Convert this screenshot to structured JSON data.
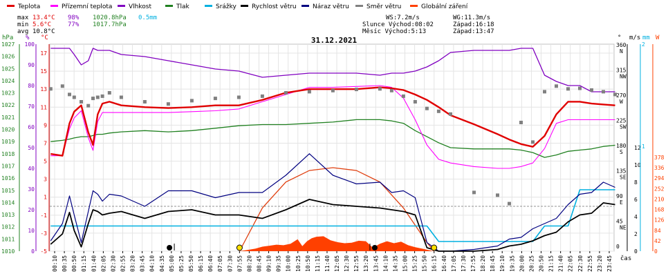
{
  "legend": [
    {
      "label": "Teplota",
      "color": "#e00000"
    },
    {
      "label": "Přízemní teplota",
      "color": "#ff00ff"
    },
    {
      "label": "Vlhkost",
      "color": "#8000c0"
    },
    {
      "label": "Tlak",
      "color": "#208020"
    },
    {
      "label": "Srážky",
      "color": "#00b0e0"
    },
    {
      "label": "Rychlost větru",
      "color": "#000000"
    },
    {
      "label": "Náraz větru",
      "color": "#000080"
    },
    {
      "label": "Směr větru",
      "color": "#808080"
    },
    {
      "label": "Globální záření",
      "color": "#ff4000"
    }
  ],
  "stats": {
    "max_label": "max",
    "max_temp": "13.4°C",
    "max_hum": "98%",
    "max_press": "1020.8hPa",
    "max_rain": "0.5mm",
    "min_label": "min",
    "min_temp": "5.6°C",
    "min_hum": "77%",
    "min_press": "1017.7hPa",
    "avg_label": "avg",
    "avg_temp": "10.8°C"
  },
  "info": {
    "ws": "WS:7.2m/s",
    "wg": "WG:11.3m/s",
    "slunce": "Slunce Východ:08:02",
    "slunce_zapad": "Západ:16:18",
    "mesic": "Měsíc  Východ:5:13",
    "mesic_zapad": "Západ:13:47"
  },
  "date_title": "31.12.2021",
  "axis_titles": {
    "hpa": "hPa",
    "pct": "%",
    "degc": "°C",
    "ms": "m/s",
    "mm": "mm",
    "w": "W",
    "deg": "°",
    "time": "čas"
  },
  "colors": {
    "temp": "#e00000",
    "ground": "#ff00ff",
    "hum": "#8000c0",
    "press": "#208020",
    "rain": "#00b0e0",
    "wind": "#000000",
    "gust": "#000080",
    "dir": "#808080",
    "rad": "#ff4000"
  },
  "chart_data": {
    "type": "line",
    "x_ticks": [
      "00:10",
      "00:35",
      "00:50",
      "01:15",
      "01:40",
      "02:05",
      "02:30",
      "02:55",
      "03:20",
      "03:45",
      "04:10",
      "04:35",
      "05:00",
      "05:25",
      "05:50",
      "06:15",
      "06:40",
      "07:05",
      "07:30",
      "07:55",
      "08:20",
      "08:45",
      "09:10",
      "09:35",
      "10:00",
      "10:25",
      "10:50",
      "11:15",
      "11:40",
      "12:05",
      "12:30",
      "12:55",
      "13:20",
      "13:45",
      "14:10",
      "14:35",
      "15:00",
      "15:25",
      "15:50",
      "16:15",
      "16:40",
      "17:05",
      "17:30",
      "17:55",
      "18:20",
      "18:45",
      "19:10",
      "19:35",
      "20:00",
      "20:25",
      "20:50",
      "21:15",
      "21:40",
      "22:05",
      "22:30",
      "22:55",
      "23:20",
      "23:45"
    ],
    "y_axes": {
      "pressure_hpa": [
        "1027",
        "1026",
        "1025",
        "1024",
        "1023",
        "1022",
        "1021",
        "1020",
        "1019",
        "1018",
        "1017",
        "1016",
        "1015",
        "1014",
        "1013",
        "1012",
        "1011",
        "1010"
      ],
      "humidity_pct": [
        "100",
        "90",
        "80",
        "70",
        "60",
        "50",
        "40",
        "30",
        "20",
        "10",
        "0"
      ],
      "temperature_c": [
        "17",
        "15",
        "13",
        "11",
        "9",
        "7",
        "5",
        "3",
        "1",
        "-1",
        "-3",
        "-5"
      ],
      "direction_deg": [
        "360",
        "315",
        "270",
        "225",
        "180",
        "135",
        "90",
        "45",
        "0"
      ],
      "direction_names": [
        "N",
        "NW",
        "W",
        "SW",
        "S",
        "SE",
        "E",
        "NE",
        ""
      ],
      "wind_ms": [
        "12",
        "10",
        "8",
        "6",
        "4",
        "2",
        "0"
      ],
      "rain_mm": [
        "2",
        "1"
      ],
      "radiation_w": [
        "378",
        "336",
        "294",
        "252",
        "210",
        "168",
        "126",
        "84",
        "42",
        "0"
      ]
    },
    "series_time_h": [
      0,
      0.5,
      0.8,
      1.0,
      1.3,
      1.6,
      1.8,
      2.0,
      2.2,
      2.5,
      3,
      4,
      5,
      6,
      7,
      8,
      9,
      10,
      11,
      12,
      13,
      14,
      14.5,
      15,
      15.5,
      16,
      16.5,
      17,
      18,
      19,
      19.5,
      20,
      20.5,
      21,
      21.5,
      22,
      22.5,
      23,
      23.5,
      24
    ],
    "series": [
      {
        "name": "Teplota",
        "unit": "°C",
        "values": [
          5.8,
          5.6,
          9.2,
          10.5,
          11.2,
          8.2,
          6.8,
          10.2,
          11.4,
          11.6,
          11.2,
          11.0,
          10.9,
          11.0,
          11.2,
          11.2,
          11.8,
          12.6,
          13.0,
          13.0,
          13.0,
          13.2,
          13.1,
          12.9,
          12.4,
          11.8,
          11.0,
          10.1,
          9.1,
          8.0,
          7.4,
          6.9,
          6.6,
          7.8,
          10.2,
          11.6,
          11.6,
          11.4,
          11.3,
          11.2
        ]
      },
      {
        "name": "Přízemní teplota",
        "unit": "°C",
        "values": [
          5.6,
          5.6,
          8.6,
          9.8,
          10.6,
          7.6,
          6.2,
          9.4,
          10.4,
          10.4,
          10.4,
          10.4,
          10.4,
          10.5,
          10.6,
          10.8,
          11.6,
          12.4,
          13.2,
          13.2,
          13.3,
          13.4,
          13.2,
          12.0,
          9.6,
          6.8,
          5.2,
          4.8,
          4.4,
          4.2,
          4.2,
          4.4,
          4.8,
          6.4,
          9.2,
          9.6,
          9.6,
          9.6,
          9.6,
          9.6
        ]
      },
      {
        "name": "Vlhkost",
        "unit": "%",
        "values": [
          98,
          98,
          98,
          95,
          90,
          92,
          98,
          97,
          97,
          97,
          95,
          94,
          92,
          90,
          88,
          87,
          84,
          85,
          86,
          86,
          86,
          85,
          86,
          86,
          87,
          89,
          92,
          96,
          97,
          97,
          97,
          98,
          98,
          85,
          82,
          80,
          80,
          77,
          77,
          77
        ]
      },
      {
        "name": "Tlak",
        "unit": "hPa",
        "values": [
          1019.0,
          1019.1,
          1019.2,
          1019.3,
          1019.4,
          1019.4,
          1019.5,
          1019.6,
          1019.6,
          1019.7,
          1019.8,
          1019.9,
          1019.8,
          1019.9,
          1020.1,
          1020.3,
          1020.4,
          1020.4,
          1020.5,
          1020.6,
          1020.8,
          1020.8,
          1020.7,
          1020.5,
          1019.9,
          1019.4,
          1018.9,
          1018.5,
          1018.4,
          1018.4,
          1018.4,
          1018.3,
          1018.1,
          1017.7,
          1017.9,
          1018.2,
          1018.3,
          1018.4,
          1018.6,
          1018.7
        ]
      },
      {
        "name": "Rychlost větru",
        "unit": "m/s",
        "values": [
          0.8,
          2.0,
          4.5,
          2.4,
          0.5,
          3.2,
          4.8,
          4.6,
          4.2,
          4.4,
          4.6,
          3.8,
          4.6,
          4.8,
          4.2,
          4.2,
          3.8,
          4.8,
          6.0,
          5.4,
          5.2,
          5.0,
          4.8,
          4.6,
          4.2,
          0.4,
          0,
          0,
          0,
          0.2,
          0.6,
          0.8,
          1.2,
          1.8,
          2.2,
          3.4,
          4.2,
          4.4,
          5.6,
          5.4
        ]
      },
      {
        "name": "Náraz větru",
        "unit": "m/s",
        "values": [
          1.2,
          3.2,
          6.4,
          4.2,
          1.0,
          4.6,
          7.0,
          6.6,
          5.8,
          6.6,
          6.4,
          5.2,
          7.0,
          7.0,
          6.2,
          6.8,
          6.8,
          8.8,
          11.3,
          8.8,
          7.8,
          8.0,
          6.8,
          7.0,
          6.2,
          1.0,
          0,
          0,
          0.2,
          0.6,
          1.4,
          1.6,
          2.6,
          3.2,
          3.8,
          5.4,
          6.6,
          6.8,
          8.0,
          7.4
        ]
      },
      {
        "name": "Směr větru",
        "unit": "°",
        "values": [
          285,
          290,
          275,
          270,
          262,
          255,
          268,
          270,
          272,
          278,
          270,
          262,
          258,
          264,
          268,
          270,
          272,
          278,
          280,
          282,
          284,
          285,
          282,
          272,
          262,
          250,
          245,
          240,
          100,
          95,
          80,
          225,
          190,
          280,
          290,
          285,
          286,
          283,
          280,
          275
        ]
      },
      {
        "name": "Srážky",
        "unit": "mm",
        "values": [
          0.15,
          0.15,
          0.15,
          0.15,
          0.15,
          0.15,
          0.15,
          0.15,
          0.15,
          0.15,
          0.15,
          0.15,
          0.15,
          0.15,
          0.15,
          0.15,
          0.15,
          0.15,
          0.15,
          0.15,
          0.15,
          0.15,
          0.15,
          0.15,
          0.15,
          0.15,
          0,
          0,
          0,
          0,
          0,
          0,
          0,
          0.15,
          0.15,
          0.15,
          0.5,
          0.5,
          0.5,
          0.5
        ]
      }
    ],
    "radiation": {
      "name": "Globální záření",
      "unit": "W",
      "clear_sky_time_h": [
        8.03,
        9,
        10,
        11,
        12,
        13,
        14,
        15,
        16,
        16.3
      ],
      "clear_sky_values": [
        0,
        60,
        96,
        112,
        116,
        112,
        96,
        60,
        12,
        0
      ],
      "measured_time_h": [
        8.0,
        8.3,
        8.7,
        9.0,
        9.3,
        9.6,
        9.9,
        10.2,
        10.5,
        10.7,
        10.9,
        11.1,
        11.3,
        11.6,
        11.9,
        12.2,
        12.5,
        12.8,
        13.1,
        13.4,
        13.7,
        14.0,
        14.3,
        14.6,
        14.9,
        15.2,
        15.5,
        15.8,
        16.1,
        16.3
      ],
      "measured_values": [
        0,
        4,
        10,
        18,
        22,
        26,
        24,
        30,
        48,
        20,
        40,
        52,
        58,
        60,
        44,
        36,
        32,
        34,
        42,
        40,
        14,
        30,
        40,
        32,
        38,
        24,
        16,
        10,
        4,
        0
      ]
    },
    "markers": [
      {
        "time_h": 5.05,
        "type": "moonrise"
      },
      {
        "time_h": 8.03,
        "type": "sunrise"
      },
      {
        "time_h": 13.78,
        "type": "moonset"
      },
      {
        "time_h": 16.3,
        "type": "sunset"
      }
    ]
  }
}
